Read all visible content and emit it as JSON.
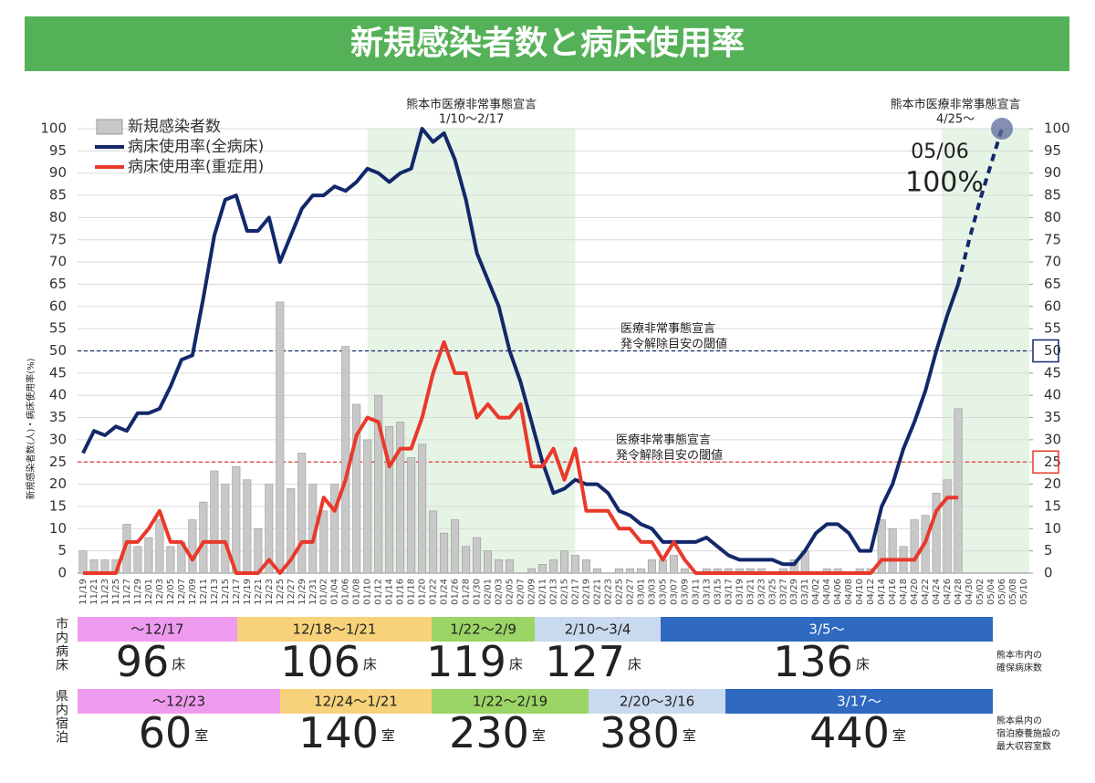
{
  "chart_data": {
    "type": "bar",
    "title": "新規感染者数と病床使用率",
    "y_label": "新規感染者数(人)・病床使用率(%)",
    "categories": [
      "11/19",
      "11/21",
      "11/23",
      "11/25",
      "11/27",
      "11/29",
      "12/01",
      "12/03",
      "12/05",
      "12/07",
      "12/09",
      "12/11",
      "12/13",
      "12/15",
      "12/17",
      "12/19",
      "12/21",
      "12/23",
      "12/25",
      "12/27",
      "12/29",
      "12/31",
      "01/02",
      "01/04",
      "01/06",
      "01/08",
      "01/10",
      "01/12",
      "01/14",
      "01/16",
      "01/18",
      "01/20",
      "01/22",
      "01/24",
      "01/26",
      "01/28",
      "01/30",
      "02/01",
      "02/03",
      "02/05",
      "02/07",
      "02/09",
      "02/11",
      "02/13",
      "02/15",
      "02/17",
      "02/19",
      "02/21",
      "02/23",
      "02/25",
      "02/27",
      "03/01",
      "03/03",
      "03/05",
      "03/07",
      "03/09",
      "03/11",
      "03/13",
      "03/15",
      "03/17",
      "03/19",
      "03/21",
      "03/23",
      "03/25",
      "03/27",
      "03/29",
      "03/31",
      "04/02",
      "04/04",
      "04/06",
      "04/08",
      "04/10",
      "04/12",
      "04/14",
      "04/16",
      "04/18",
      "04/20",
      "04/22",
      "04/24",
      "04/26",
      "04/28",
      "04/30",
      "05/02",
      "05/04",
      "05/06",
      "05/08",
      "05/10"
    ],
    "series": [
      {
        "name": "新規感染者数",
        "type": "bar",
        "color": "#c8c8c8",
        "values": [
          5,
          3,
          3,
          3,
          11,
          6,
          8,
          12,
          6,
          7,
          12,
          16,
          23,
          20,
          24,
          21,
          10,
          20,
          61,
          19,
          27,
          20,
          14,
          20,
          51,
          38,
          30,
          40,
          33,
          34,
          26,
          29,
          14,
          9,
          12,
          6,
          8,
          5,
          3,
          3,
          0,
          1,
          2,
          3,
          5,
          4,
          3,
          1,
          0,
          1,
          1,
          1,
          3,
          3,
          4,
          1,
          0,
          1,
          1,
          1,
          1,
          1,
          1,
          0,
          1,
          3,
          5,
          0,
          1,
          1,
          0,
          1,
          1,
          12,
          10,
          6,
          12,
          13,
          18,
          21,
          37,
          null,
          null,
          null,
          null,
          null,
          null
        ]
      },
      {
        "name": "病床使用率(全病床)",
        "type": "line",
        "color": "#13286a",
        "values": [
          27,
          32,
          31,
          33,
          32,
          36,
          36,
          37,
          42,
          48,
          49,
          62,
          76,
          84,
          85,
          77,
          77,
          80,
          70,
          76,
          82,
          85,
          85,
          87,
          86,
          88,
          91,
          90,
          88,
          90,
          91,
          100,
          97,
          99,
          93,
          84,
          72,
          66,
          60,
          50,
          43,
          34,
          25,
          18,
          19,
          21,
          20,
          20,
          18,
          14,
          13,
          11,
          10,
          7,
          7,
          7,
          7,
          8,
          6,
          4,
          3,
          3,
          3,
          3,
          2,
          2,
          5,
          9,
          11,
          11,
          9,
          5,
          5,
          15,
          20,
          28,
          34,
          41,
          50,
          58,
          65,
          null,
          null,
          null,
          null,
          null,
          null
        ]
      },
      {
        "name": "病床使用率(重症用)",
        "type": "line",
        "color": "#e8392b",
        "values": [
          0,
          0,
          0,
          0,
          7,
          7,
          10,
          14,
          7,
          7,
          3,
          7,
          7,
          7,
          0,
          0,
          0,
          3,
          0,
          3,
          7,
          7,
          17,
          14,
          21,
          31,
          35,
          34,
          24,
          28,
          28,
          35,
          45,
          52,
          45,
          45,
          35,
          38,
          35,
          35,
          38,
          24,
          24,
          28,
          21,
          28,
          14,
          14,
          14,
          10,
          10,
          7,
          7,
          3,
          7,
          3,
          0,
          0,
          0,
          0,
          0,
          0,
          0,
          0,
          0,
          0,
          0,
          0,
          0,
          0,
          0,
          0,
          0,
          3,
          3,
          3,
          3,
          7,
          14,
          17,
          17,
          null,
          null,
          null,
          null,
          null,
          null
        ]
      }
    ],
    "projection": {
      "color": "#13286a",
      "values": [
        null,
        null,
        null,
        null,
        null,
        null,
        null,
        null,
        null,
        null,
        null,
        null,
        null,
        null,
        null,
        null,
        null,
        null,
        null,
        null,
        null,
        null,
        null,
        null,
        null,
        null,
        null,
        null,
        null,
        null,
        null,
        null,
        null,
        null,
        null,
        null,
        null,
        null,
        null,
        null,
        null,
        null,
        null,
        null,
        null,
        null,
        null,
        null,
        null,
        null,
        null,
        null,
        null,
        null,
        null,
        null,
        null,
        null,
        null,
        null,
        null,
        null,
        null,
        null,
        null,
        null,
        null,
        null,
        null,
        null,
        null,
        null,
        null,
        null,
        null,
        null,
        null,
        null,
        null,
        null,
        65,
        75,
        84,
        92,
        100,
        null,
        null
      ]
    },
    "callout": {
      "x": "05/06",
      "value": 100,
      "label": "100%"
    },
    "ylim": [
      0,
      100
    ],
    "yticks": [
      0,
      5,
      10,
      15,
      20,
      25,
      30,
      35,
      40,
      45,
      50,
      55,
      60,
      65,
      70,
      75,
      80,
      85,
      90,
      95,
      100
    ],
    "y2lim": [
      0,
      100
    ],
    "y2ticks": [
      0,
      5,
      10,
      15,
      20,
      25,
      30,
      35,
      40,
      45,
      50,
      55,
      60,
      65,
      70,
      75,
      80,
      85,
      90,
      95,
      100
    ],
    "grid": true,
    "thresholds": [
      {
        "value": 50,
        "color": "#13286a",
        "label": [
          "医療非常事態宣言",
          "発令解除目安の閾値"
        ]
      },
      {
        "value": 25,
        "color": "#e8392b",
        "label": [
          "医療非常事態宣言",
          "発令解除目安の閾値"
        ]
      }
    ],
    "periods": [
      {
        "start": "01/10",
        "end": "02/17",
        "label": [
          "熊本市医療非常事態宣言",
          "1/10～2/17"
        ]
      },
      {
        "start": "04/25",
        "label": [
          "熊本市医療非常事態宣言",
          "4/25～"
        ]
      }
    ]
  },
  "bed_table": {
    "label": "市内病床",
    "unit": "床",
    "note": [
      "熊本市内の",
      "確保病床数"
    ],
    "rows": [
      {
        "period": "～12/17",
        "count": 96,
        "color": "#ee9bee"
      },
      {
        "period": "12/18～1/21",
        "count": 106,
        "color": "#f7d27a"
      },
      {
        "period": "1/22～2/9",
        "count": 119,
        "color": "#9bd566"
      },
      {
        "period": "2/10～3/4",
        "count": 127,
        "color": "#c9d9ee"
      },
      {
        "period": "3/5～",
        "count": 136,
        "color": "#2f69c0"
      }
    ]
  },
  "lodging_table": {
    "label": "県内宿泊",
    "unit": "室",
    "note": [
      "熊本県内の",
      "宿泊療養施設の",
      "最大収容室数"
    ],
    "rows": [
      {
        "period": "～12/23",
        "count": 60,
        "color": "#ee9bee"
      },
      {
        "period": "12/24～1/21",
        "count": 140,
        "color": "#f7d27a"
      },
      {
        "period": "1/22～2/19",
        "count": 230,
        "color": "#9bd566"
      },
      {
        "period": "2/20～3/16",
        "count": 380,
        "color": "#c9d9ee"
      },
      {
        "period": "3/17～",
        "count": 440,
        "color": "#2f69c0"
      }
    ]
  }
}
